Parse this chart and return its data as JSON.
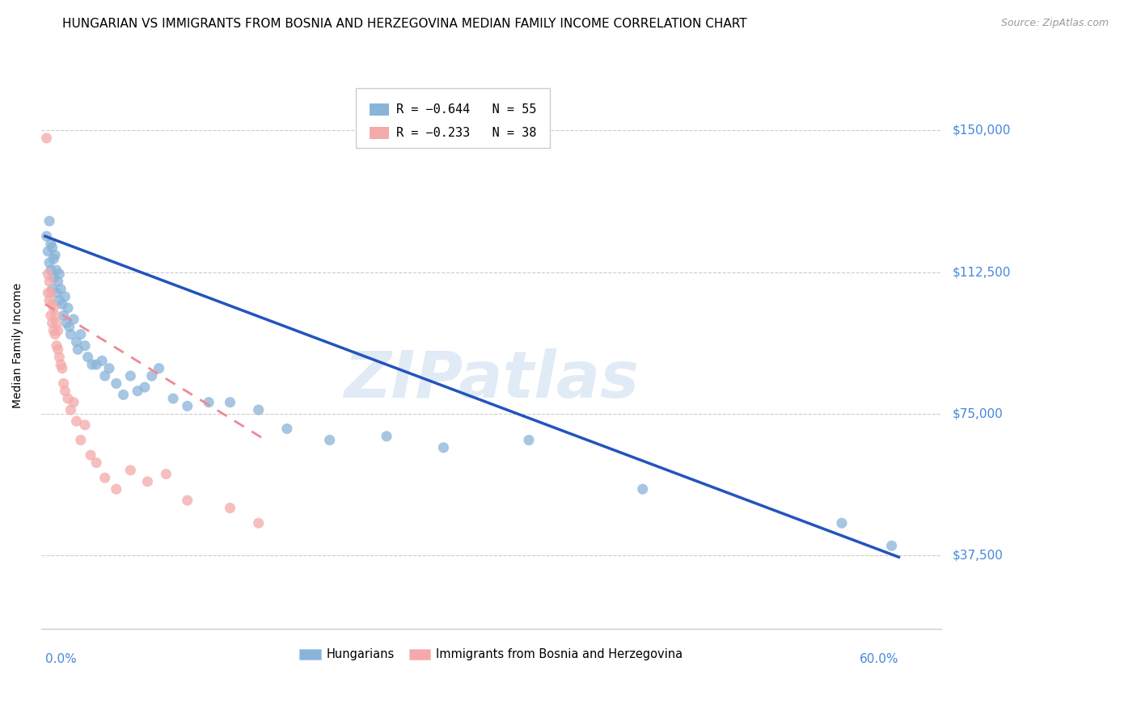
{
  "title": "HUNGARIAN VS IMMIGRANTS FROM BOSNIA AND HERZEGOVINA MEDIAN FAMILY INCOME CORRELATION CHART",
  "source": "Source: ZipAtlas.com",
  "ylabel": "Median Family Income",
  "ytick_labels": [
    "$150,000",
    "$112,500",
    "$75,000",
    "$37,500"
  ],
  "ytick_values": [
    150000,
    112500,
    75000,
    37500
  ],
  "ylim": [
    18000,
    168000
  ],
  "xlim": [
    -0.003,
    0.63
  ],
  "legend_r1": "R = −0.644",
  "legend_n1": "N = 55",
  "legend_r2": "R = −0.233",
  "legend_n2": "N = 38",
  "blue_color": "#89B4D9",
  "pink_color": "#F4AAAA",
  "line_blue": "#2255BB",
  "line_pink": "#EE8899",
  "watermark": "ZIPatlas",
  "blue_scatter_x": [
    0.001,
    0.002,
    0.003,
    0.003,
    0.004,
    0.004,
    0.005,
    0.005,
    0.006,
    0.006,
    0.007,
    0.008,
    0.008,
    0.009,
    0.01,
    0.01,
    0.011,
    0.012,
    0.013,
    0.014,
    0.015,
    0.016,
    0.017,
    0.018,
    0.02,
    0.022,
    0.023,
    0.025,
    0.028,
    0.03,
    0.033,
    0.036,
    0.04,
    0.042,
    0.045,
    0.05,
    0.055,
    0.06,
    0.065,
    0.07,
    0.075,
    0.08,
    0.09,
    0.1,
    0.115,
    0.13,
    0.15,
    0.17,
    0.2,
    0.24,
    0.28,
    0.34,
    0.42,
    0.56,
    0.595
  ],
  "blue_scatter_y": [
    122000,
    118000,
    126000,
    115000,
    120000,
    113000,
    119000,
    108000,
    116000,
    111000,
    117000,
    113000,
    107000,
    110000,
    112000,
    105000,
    108000,
    104000,
    101000,
    106000,
    99000,
    103000,
    98000,
    96000,
    100000,
    94000,
    92000,
    96000,
    93000,
    90000,
    88000,
    88000,
    89000,
    85000,
    87000,
    83000,
    80000,
    85000,
    81000,
    82000,
    85000,
    87000,
    79000,
    77000,
    78000,
    78000,
    76000,
    71000,
    68000,
    69000,
    66000,
    68000,
    55000,
    46000,
    40000
  ],
  "pink_scatter_x": [
    0.001,
    0.002,
    0.002,
    0.003,
    0.003,
    0.004,
    0.004,
    0.005,
    0.005,
    0.006,
    0.006,
    0.007,
    0.007,
    0.008,
    0.008,
    0.009,
    0.009,
    0.01,
    0.011,
    0.012,
    0.013,
    0.014,
    0.016,
    0.018,
    0.02,
    0.022,
    0.025,
    0.028,
    0.032,
    0.036,
    0.042,
    0.05,
    0.06,
    0.072,
    0.085,
    0.1,
    0.13,
    0.15
  ],
  "pink_scatter_y": [
    148000,
    112000,
    107000,
    110000,
    105000,
    107000,
    101000,
    104000,
    99000,
    103000,
    97000,
    101000,
    96000,
    99000,
    93000,
    97000,
    92000,
    90000,
    88000,
    87000,
    83000,
    81000,
    79000,
    76000,
    78000,
    73000,
    68000,
    72000,
    64000,
    62000,
    58000,
    55000,
    60000,
    57000,
    59000,
    52000,
    50000,
    46000
  ],
  "title_fontsize": 11,
  "source_fontsize": 9,
  "axis_label_fontsize": 10,
  "tick_fontsize": 11
}
